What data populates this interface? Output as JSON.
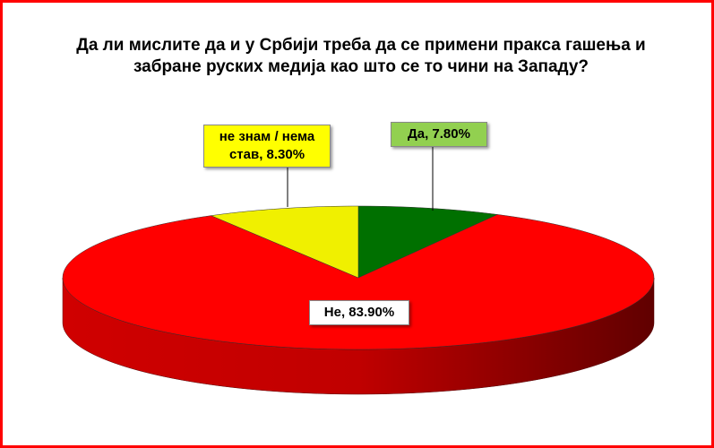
{
  "chart_data": {
    "type": "pie3d",
    "title": "Да ли мислите да и у Србији треба да се примени пракса гашења и забране руских медија као што се то чини на Западу?",
    "values": [
      7.8,
      83.9,
      8.3
    ],
    "value_labels": [
      "Да, 7.80%",
      "Не, 83.90%",
      "не знам / нема став, 8.30%"
    ],
    "colors": [
      "#007000",
      "#ff0000",
      "#f0f000"
    ],
    "label_colors": [
      "#92d050",
      "#ffffff",
      "#ffff00"
    ]
  }
}
